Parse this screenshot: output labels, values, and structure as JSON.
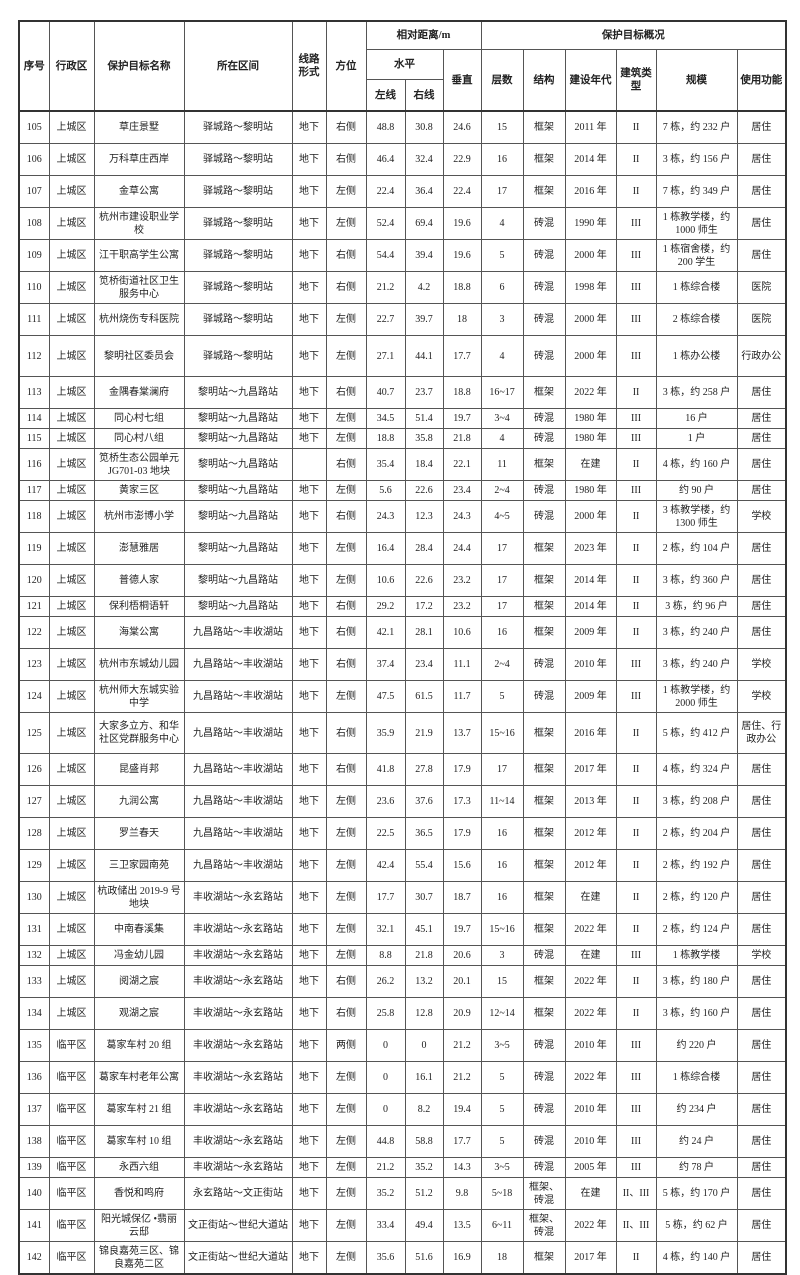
{
  "header": {
    "no": "序号",
    "district": "行政区",
    "name": "保护目标名称",
    "section": "所在区间",
    "form": "线路形式",
    "side": "方位",
    "distance": "相对距离/m",
    "horizontal": "水平",
    "left": "左线",
    "right": "右线",
    "vertical": "垂直",
    "overview": "保护目标概况",
    "floors": "层数",
    "structure": "结构",
    "year": "建设年代",
    "type": "建筑类型",
    "scale": "规模",
    "use": "使用功能"
  },
  "rows": [
    [
      "105",
      "上城区",
      "草庄景墅",
      "驿城路～黎明站",
      "地下",
      "右侧",
      "48.8",
      "30.8",
      "24.6",
      "15",
      "框架",
      "2011 年",
      "II",
      "7 栋，约 232 户",
      "居住"
    ],
    [
      "106",
      "上城区",
      "万科草庄西岸",
      "驿城路～黎明站",
      "地下",
      "右侧",
      "46.4",
      "32.4",
      "22.9",
      "16",
      "框架",
      "2014 年",
      "II",
      "3 栋，约 156 户",
      "居住"
    ],
    [
      "107",
      "上城区",
      "金草公寓",
      "驿城路～黎明站",
      "地下",
      "左侧",
      "22.4",
      "36.4",
      "22.4",
      "17",
      "框架",
      "2016 年",
      "II",
      "7 栋，约 349 户",
      "居住"
    ],
    [
      "108",
      "上城区",
      "杭州市建设职业学校",
      "驿城路～黎明站",
      "地下",
      "左侧",
      "52.4",
      "69.4",
      "19.6",
      "4",
      "砖混",
      "1990 年",
      "III",
      "1 栋教学楼，约 1000 师生",
      "居住"
    ],
    [
      "109",
      "上城区",
      "江干职高学生公寓",
      "驿城路～黎明站",
      "地下",
      "右侧",
      "54.4",
      "39.4",
      "19.6",
      "5",
      "砖混",
      "2000 年",
      "III",
      "1 栋宿舍楼，约 200 学生",
      "居住"
    ],
    [
      "110",
      "上城区",
      "笕桥街道社区卫生服务中心",
      "驿城路～黎明站",
      "地下",
      "右侧",
      "21.2",
      "4.2",
      "18.8",
      "6",
      "砖混",
      "1998 年",
      "III",
      "1 栋综合楼",
      "医院"
    ],
    [
      "111",
      "上城区",
      "杭州烧伤专科医院",
      "驿城路～黎明站",
      "地下",
      "左侧",
      "22.7",
      "39.7",
      "18",
      "3",
      "砖混",
      "2000 年",
      "III",
      "2 栋综合楼",
      "医院"
    ],
    [
      "112",
      "上城区",
      "黎明社区委员会",
      "驿城路～黎明站",
      "地下",
      "左侧",
      "27.1",
      "44.1",
      "17.7",
      "4",
      "砖混",
      "2000 年",
      "III",
      "1 栋办公楼",
      "行政办公"
    ],
    [
      "113",
      "上城区",
      "金隅春棠澜府",
      "黎明站～九昌路站",
      "地下",
      "右侧",
      "40.7",
      "23.7",
      "18.8",
      "16~17",
      "框架",
      "2022 年",
      "II",
      "3 栋，约 258 户",
      "居住"
    ],
    [
      "114",
      "上城区",
      "同心村七组",
      "黎明站～九昌路站",
      "地下",
      "左侧",
      "34.5",
      "51.4",
      "19.7",
      "3~4",
      "砖混",
      "1980 年",
      "III",
      "16 户",
      "居住"
    ],
    [
      "115",
      "上城区",
      "同心村八组",
      "黎明站～九昌路站",
      "地下",
      "左侧",
      "18.8",
      "35.8",
      "21.8",
      "4",
      "砖混",
      "1980 年",
      "III",
      "1 户",
      "居住"
    ],
    [
      "116",
      "上城区",
      "笕桥生态公园单元 JG701-03 地块",
      "黎明站～九昌路站",
      "",
      "右侧",
      "35.4",
      "18.4",
      "22.1",
      "11",
      "框架",
      "在建",
      "II",
      "4 栋，约 160 户",
      "居住"
    ],
    [
      "117",
      "上城区",
      "黄家三区",
      "黎明站～九昌路站",
      "地下",
      "左侧",
      "5.6",
      "22.6",
      "23.4",
      "2~4",
      "砖混",
      "1980 年",
      "III",
      "约 90 户",
      "居住"
    ],
    [
      "118",
      "上城区",
      "杭州市澎博小学",
      "黎明站～九昌路站",
      "地下",
      "右侧",
      "24.3",
      "12.3",
      "24.3",
      "4~5",
      "砖混",
      "2000 年",
      "II",
      "3 栋教学楼，约 1300 师生",
      "学校"
    ],
    [
      "119",
      "上城区",
      "澎慧雅居",
      "黎明站～九昌路站",
      "地下",
      "左侧",
      "16.4",
      "28.4",
      "24.4",
      "17",
      "框架",
      "2023 年",
      "II",
      "2 栋，约 104 户",
      "居住"
    ],
    [
      "120",
      "上城区",
      "普德人家",
      "黎明站～九昌路站",
      "地下",
      "左侧",
      "10.6",
      "22.6",
      "23.2",
      "17",
      "框架",
      "2014 年",
      "II",
      "3 栋，约 360 户",
      "居住"
    ],
    [
      "121",
      "上城区",
      "保利梧桐语轩",
      "黎明站～九昌路站",
      "地下",
      "右侧",
      "29.2",
      "17.2",
      "23.2",
      "17",
      "框架",
      "2014 年",
      "II",
      "3 栋，约 96 户",
      "居住"
    ],
    [
      "122",
      "上城区",
      "海棠公寓",
      "九昌路站～丰收湖站",
      "地下",
      "右侧",
      "42.1",
      "28.1",
      "10.6",
      "16",
      "框架",
      "2009 年",
      "II",
      "3 栋，约 240 户",
      "居住"
    ],
    [
      "123",
      "上城区",
      "杭州市东城幼儿园",
      "九昌路站～丰收湖站",
      "地下",
      "右侧",
      "37.4",
      "23.4",
      "11.1",
      "2~4",
      "砖混",
      "2010 年",
      "III",
      "3 栋，约 240 户",
      "学校"
    ],
    [
      "124",
      "上城区",
      "杭州师大东城实验中学",
      "九昌路站～丰收湖站",
      "地下",
      "左侧",
      "47.5",
      "61.5",
      "11.7",
      "5",
      "砖混",
      "2009 年",
      "III",
      "1 栋教学楼，约 2000 师生",
      "学校"
    ],
    [
      "125",
      "上城区",
      "大家多立方、和华社区党群服务中心",
      "九昌路站～丰收湖站",
      "地下",
      "右侧",
      "35.9",
      "21.9",
      "13.7",
      "15~16",
      "框架",
      "2016 年",
      "II",
      "5 栋，约 412 户",
      "居住、行政办公"
    ],
    [
      "126",
      "上城区",
      "昆盛肖邦",
      "九昌路站～丰收湖站",
      "地下",
      "右侧",
      "41.8",
      "27.8",
      "17.9",
      "17",
      "框架",
      "2017 年",
      "II",
      "4 栋，约 324 户",
      "居住"
    ],
    [
      "127",
      "上城区",
      "九润公寓",
      "九昌路站～丰收湖站",
      "地下",
      "左侧",
      "23.6",
      "37.6",
      "17.3",
      "11~14",
      "框架",
      "2013 年",
      "II",
      "3 栋，约 208 户",
      "居住"
    ],
    [
      "128",
      "上城区",
      "罗兰春天",
      "九昌路站～丰收湖站",
      "地下",
      "左侧",
      "22.5",
      "36.5",
      "17.9",
      "16",
      "框架",
      "2012 年",
      "II",
      "2 栋，约 204 户",
      "居住"
    ],
    [
      "129",
      "上城区",
      "三卫家园南苑",
      "九昌路站～丰收湖站",
      "地下",
      "左侧",
      "42.4",
      "55.4",
      "15.6",
      "16",
      "框架",
      "2012 年",
      "II",
      "2 栋，约 192 户",
      "居住"
    ],
    [
      "130",
      "上城区",
      "杭政储出 2019-9 号地块",
      "丰收湖站～永玄路站",
      "地下",
      "左侧",
      "17.7",
      "30.7",
      "18.7",
      "16",
      "框架",
      "在建",
      "II",
      "2 栋，约 120 户",
      "居住"
    ],
    [
      "131",
      "上城区",
      "中南春溪集",
      "丰收湖站～永玄路站",
      "地下",
      "左侧",
      "32.1",
      "45.1",
      "19.7",
      "15~16",
      "框架",
      "2022 年",
      "II",
      "2 栋，约 124 户",
      "居住"
    ],
    [
      "132",
      "上城区",
      "冯金幼儿园",
      "丰收湖站～永玄路站",
      "地下",
      "左侧",
      "8.8",
      "21.8",
      "20.6",
      "3",
      "砖混",
      "在建",
      "III",
      "1 栋教学楼",
      "学校"
    ],
    [
      "133",
      "上城区",
      "阅湖之宸",
      "丰收湖站～永玄路站",
      "地下",
      "右侧",
      "26.2",
      "13.2",
      "20.1",
      "15",
      "框架",
      "2022 年",
      "II",
      "3 栋，约 180 户",
      "居住"
    ],
    [
      "134",
      "上城区",
      "观湖之宸",
      "丰收湖站～永玄路站",
      "地下",
      "右侧",
      "25.8",
      "12.8",
      "20.9",
      "12~14",
      "框架",
      "2022 年",
      "II",
      "3 栋，约 160 户",
      "居住"
    ],
    [
      "135",
      "临平区",
      "葛家车村 20 组",
      "丰收湖站～永玄路站",
      "地下",
      "两侧",
      "0",
      "0",
      "21.2",
      "3~5",
      "砖混",
      "2010 年",
      "III",
      "约 220 户",
      "居住"
    ],
    [
      "136",
      "临平区",
      "葛家车村老年公寓",
      "丰收湖站～永玄路站",
      "地下",
      "左侧",
      "0",
      "16.1",
      "21.2",
      "5",
      "砖混",
      "2022 年",
      "III",
      "1 栋综合楼",
      "居住"
    ],
    [
      "137",
      "临平区",
      "葛家车村 21 组",
      "丰收湖站～永玄路站",
      "地下",
      "左侧",
      "0",
      "8.2",
      "19.4",
      "5",
      "砖混",
      "2010 年",
      "III",
      "约 234 户",
      "居住"
    ],
    [
      "138",
      "临平区",
      "葛家车村 10 组",
      "丰收湖站～永玄路站",
      "地下",
      "左侧",
      "44.8",
      "58.8",
      "17.7",
      "5",
      "砖混",
      "2010 年",
      "III",
      "约 24 户",
      "居住"
    ],
    [
      "139",
      "临平区",
      "永西六组",
      "丰收湖站～永玄路站",
      "地下",
      "左侧",
      "21.2",
      "35.2",
      "14.3",
      "3~5",
      "砖混",
      "2005 年",
      "III",
      "约 78 户",
      "居住"
    ],
    [
      "140",
      "临平区",
      "香悦和鸣府",
      "永玄路站～文正街站",
      "地下",
      "左侧",
      "35.2",
      "51.2",
      "9.8",
      "5~18",
      "框架、砖混",
      "在建",
      "II、III",
      "5 栋，约 170 户",
      "居住"
    ],
    [
      "141",
      "临平区",
      "阳光城保亿 •翡丽云邸",
      "文正街站～世纪大道站",
      "地下",
      "左侧",
      "33.4",
      "49.4",
      "13.5",
      "6~11",
      "框架、砖混",
      "2022 年",
      "II、III",
      "5 栋，约 62 户",
      "居住"
    ],
    [
      "142",
      "临平区",
      "锦良嘉苑三区、锦良嘉苑二区",
      "文正街站～世纪大道站",
      "地下",
      "左侧",
      "35.6",
      "51.6",
      "16.9",
      "18",
      "框架",
      "2017 年",
      "II",
      "4 栋，约 140 户",
      "居住"
    ]
  ]
}
